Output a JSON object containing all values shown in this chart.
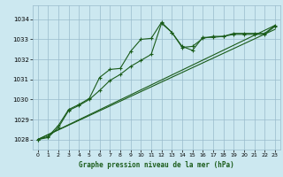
{
  "title": "Graphe pression niveau de la mer (hPa)",
  "bg_color": "#cce8f0",
  "grid_color": "#99bbcc",
  "line_color": "#1a5c1a",
  "xlim": [
    -0.5,
    23.5
  ],
  "ylim": [
    1027.5,
    1034.7
  ],
  "yticks": [
    1028,
    1029,
    1030,
    1031,
    1032,
    1033,
    1034
  ],
  "xticks": [
    0,
    1,
    2,
    3,
    4,
    5,
    6,
    7,
    8,
    9,
    10,
    11,
    12,
    13,
    14,
    15,
    16,
    17,
    18,
    19,
    20,
    21,
    22,
    23
  ],
  "series": [
    {
      "x": [
        0,
        1,
        2,
        3,
        4,
        5,
        6,
        7,
        8,
        9,
        10,
        11,
        12,
        13,
        14,
        15,
        16,
        17,
        18,
        19,
        20,
        21,
        22,
        23
      ],
      "y": [
        1028.0,
        1028.15,
        1028.7,
        1029.5,
        1029.75,
        1030.05,
        1031.1,
        1031.5,
        1031.55,
        1032.4,
        1033.0,
        1033.05,
        1033.85,
        1033.35,
        1032.65,
        1032.45,
        1033.1,
        1033.1,
        1033.15,
        1033.3,
        1033.3,
        1033.3,
        1033.3,
        1033.7
      ],
      "marker": "+"
    },
    {
      "x": [
        0,
        1,
        2,
        3,
        4,
        5,
        6,
        7,
        8,
        9,
        10,
        11,
        12,
        13,
        14,
        15,
        16,
        17,
        18,
        19,
        20,
        21,
        22,
        23
      ],
      "y": [
        1028.0,
        1028.1,
        1028.6,
        1029.45,
        1029.7,
        1030.0,
        1030.45,
        1030.95,
        1031.25,
        1031.65,
        1031.95,
        1032.25,
        1033.8,
        1033.35,
        1032.6,
        1032.65,
        1033.05,
        1033.15,
        1033.15,
        1033.25,
        1033.25,
        1033.25,
        1033.25,
        1033.65
      ],
      "marker": "+"
    },
    {
      "x": [
        0,
        23
      ],
      "y": [
        1028.0,
        1033.7
      ],
      "marker": null
    },
    {
      "x": [
        0,
        23
      ],
      "y": [
        1028.0,
        1033.5
      ],
      "marker": null
    }
  ]
}
